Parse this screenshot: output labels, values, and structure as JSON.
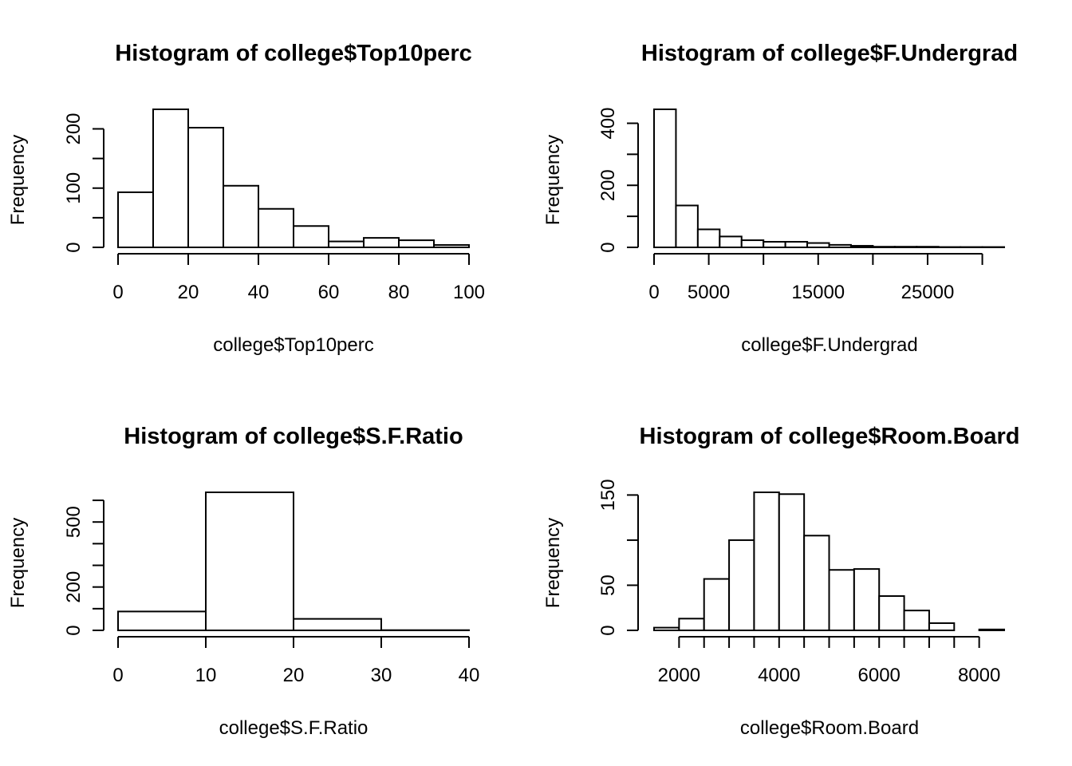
{
  "chart_data": [
    {
      "type": "bar",
      "title": "Histogram of college$Top10perc",
      "xlabel": "college$Top10perc",
      "ylabel": "Frequency",
      "breaks": [
        0,
        10,
        20,
        30,
        40,
        50,
        60,
        70,
        80,
        90,
        100
      ],
      "values": [
        93,
        233,
        202,
        104,
        65,
        36,
        10,
        16,
        12,
        4
      ],
      "xlim": [
        0,
        100
      ],
      "ylim": [
        0,
        233
      ],
      "xticks": [
        0,
        20,
        40,
        60,
        80,
        100
      ],
      "xtick_labels": [
        "0",
        "20",
        "40",
        "60",
        "80",
        "100"
      ],
      "yticks": [
        0,
        50,
        100,
        150,
        200
      ],
      "ytick_labels": [
        "0",
        "",
        "100",
        "",
        "200"
      ],
      "grid": false
    },
    {
      "type": "bar",
      "title": "Histogram of college$F.Undergrad",
      "xlabel": "college$F.Undergrad",
      "ylabel": "Frequency",
      "breaks": [
        0,
        2000,
        4000,
        6000,
        8000,
        10000,
        12000,
        14000,
        16000,
        18000,
        20000,
        22000,
        24000,
        26000,
        28000,
        30000,
        32000
      ],
      "values": [
        445,
        135,
        58,
        35,
        23,
        18,
        18,
        14,
        8,
        5,
        2,
        2,
        2,
        1,
        1,
        1
      ],
      "xlim": [
        0,
        32000
      ],
      "ylim": [
        0,
        445
      ],
      "xticks": [
        0,
        5000,
        10000,
        15000,
        20000,
        25000,
        30000
      ],
      "xtick_labels": [
        "0",
        "5000",
        "",
        "15000",
        "",
        "25000",
        ""
      ],
      "yticks": [
        0,
        100,
        200,
        300,
        400
      ],
      "ytick_labels": [
        "0",
        "",
        "200",
        "",
        "400"
      ],
      "grid": false
    },
    {
      "type": "bar",
      "title": "Histogram of college$S.F.Ratio",
      "xlabel": "college$S.F.Ratio",
      "ylabel": "Frequency",
      "breaks": [
        0,
        10,
        20,
        30,
        40
      ],
      "values": [
        87,
        637,
        53,
        1
      ],
      "xlim": [
        0,
        40
      ],
      "ylim": [
        0,
        637
      ],
      "xticks": [
        0,
        10,
        20,
        30,
        40
      ],
      "xtick_labels": [
        "0",
        "10",
        "20",
        "30",
        "40"
      ],
      "yticks": [
        0,
        100,
        200,
        300,
        400,
        500,
        600
      ],
      "ytick_labels": [
        "0",
        "",
        "200",
        "",
        "",
        "500",
        ""
      ],
      "grid": false
    },
    {
      "type": "bar",
      "title": "Histogram of college$Room.Board",
      "xlabel": "college$Room.Board",
      "ylabel": "Frequency",
      "breaks": [
        1500,
        2000,
        2500,
        3000,
        3500,
        4000,
        4500,
        5000,
        5500,
        6000,
        6500,
        7000,
        7500,
        8000,
        8500
      ],
      "values": [
        3,
        13,
        57,
        100,
        153,
        151,
        105,
        67,
        68,
        38,
        22,
        8,
        0,
        1
      ],
      "xlim": [
        1500,
        8500
      ],
      "ylim": [
        0,
        153
      ],
      "xticks": [
        2000,
        2500,
        3000,
        3500,
        4000,
        4500,
        5000,
        5500,
        6000,
        6500,
        7000,
        7500,
        8000
      ],
      "xtick_labels": [
        "2000",
        "",
        "",
        "",
        "4000",
        "",
        "",
        "",
        "6000",
        "",
        "",
        "",
        "8000"
      ],
      "yticks": [
        0,
        50,
        100,
        150
      ],
      "ytick_labels": [
        "0",
        "50",
        "",
        "150"
      ],
      "grid": false
    }
  ]
}
